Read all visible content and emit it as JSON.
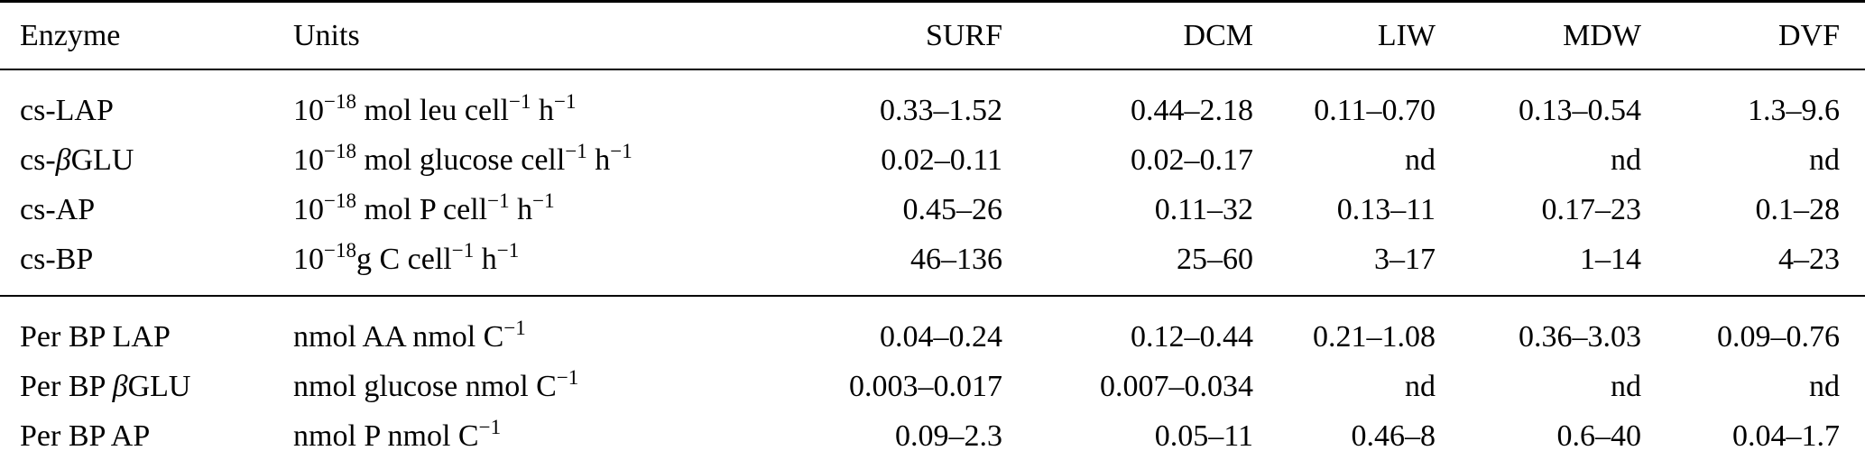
{
  "page": {
    "background_color": "#ffffff",
    "text_color": "#000000"
  },
  "table": {
    "columns": [
      {
        "label": "Enzyme",
        "align": "left"
      },
      {
        "label": "Units",
        "align": "left"
      },
      {
        "label": "SURF",
        "align": "right"
      },
      {
        "label": "DCM",
        "align": "right"
      },
      {
        "label": "LIW",
        "align": "right"
      },
      {
        "label": "MDW",
        "align": "right"
      },
      {
        "label": "DVF",
        "align": "right"
      }
    ],
    "sections": [
      {
        "name": "cell-specific-rates",
        "rows": [
          {
            "enzyme": "cs-LAP",
            "units": "10^{−18} mol leu cell^{−1} h^{−1}",
            "values": [
              "0.33–1.52",
              "0.44–2.18",
              "0.11–0.70",
              "0.13–0.54",
              "1.3–9.6"
            ]
          },
          {
            "enzyme": "cs-βGLU",
            "units": "10^{−18} mol glucose cell^{−1} h^{−1}",
            "values": [
              "0.02–0.11",
              "0.02–0.17",
              "nd",
              "nd",
              "nd"
            ]
          },
          {
            "enzyme": "cs-AP",
            "units": "10^{−18} mol P cell^{−1} h^{−1}",
            "values": [
              "0.45–26",
              "0.11–32",
              "0.13–11",
              "0.17–23",
              "0.1–28"
            ]
          },
          {
            "enzyme": "cs-BP",
            "units": "10^{−18}g C cell^{−1} h^{−1}",
            "values": [
              "46–136",
              "25–60",
              "3–17",
              "1–14",
              "4–23"
            ]
          }
        ]
      },
      {
        "name": "per-bp-rates",
        "rows": [
          {
            "enzyme": "Per BP LAP",
            "units": "nmol AA nmol C^{−1}",
            "values": [
              "0.04–0.24",
              "0.12–0.44",
              "0.21–1.08",
              "0.36–3.03",
              "0.09–0.76"
            ]
          },
          {
            "enzyme": "Per BP βGLU",
            "units": "nmol glucose nmol C^{−1}",
            "values": [
              "0.003–0.017",
              "0.007–0.034",
              "nd",
              "nd",
              "nd"
            ]
          },
          {
            "enzyme": "Per BP AP",
            "units": "nmol P nmol C^{−1}",
            "values": [
              "0.09–2.3",
              "0.05–11",
              "0.46–8",
              "0.6–40",
              "0.04–1.7"
            ]
          }
        ]
      }
    ]
  }
}
